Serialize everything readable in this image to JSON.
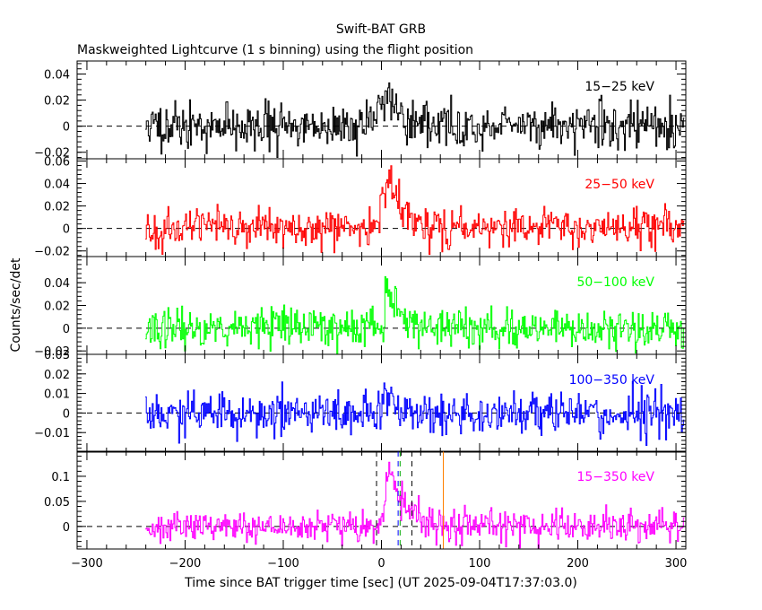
{
  "chart_data": {
    "type": "line",
    "title": "Swift-BAT GRB",
    "subtitle": "Maskweighted Lightcurve (1 s binning) using the flight position",
    "xlabel": "Time since BAT trigger time [sec] (UT 2025-09-04T17:37:03.0)",
    "ylabel": "Counts/sec/det",
    "xlim": [
      -310,
      310
    ],
    "xticks": [
      -300,
      -200,
      -100,
      0,
      100,
      200,
      300
    ],
    "xtick_labels": [
      "−300",
      "−200",
      "−100",
      "0",
      "100",
      "200",
      "300"
    ],
    "data_range": [
      -240,
      308
    ],
    "panels": [
      {
        "name": "15-25",
        "band": "15−25 keV",
        "color": "#000000",
        "ylim": [
          -0.025,
          0.05
        ],
        "yticks": [
          -0.02,
          0,
          0.02,
          0.04
        ],
        "ytick_labels": [
          "−0.02",
          "0",
          "0.02",
          "0.04"
        ],
        "noise": 0.0085,
        "peak": 0.025,
        "peak_center": 8,
        "rise": 8,
        "decay": 12,
        "seed": 11
      },
      {
        "name": "25-50",
        "band": "25−50 keV",
        "color": "#ff0000",
        "ylim": [
          -0.025,
          0.062
        ],
        "yticks": [
          -0.02,
          0,
          0.02,
          0.04,
          0.06
        ],
        "ytick_labels": [
          "−0.02",
          "0",
          "0.02",
          "0.04",
          "0.06"
        ],
        "noise": 0.0085,
        "peak": 0.045,
        "peak_center": 8,
        "rise": 6,
        "decay": 13,
        "seed": 23
      },
      {
        "name": "50-100",
        "band": "50−100 keV",
        "color": "#00ff00",
        "ylim": [
          -0.023,
          0.063
        ],
        "yticks": [
          -0.02,
          0,
          0.02,
          0.04
        ],
        "ytick_labels": [
          "−0.02",
          "0",
          "0.02",
          "0.04"
        ],
        "noise": 0.0085,
        "peak": 0.042,
        "peak_center": 6,
        "rise": 2,
        "decay": 13,
        "seed": 37
      },
      {
        "name": "100-350",
        "band": "100−350 keV",
        "color": "#0000ff",
        "ylim": [
          -0.02,
          0.03
        ],
        "yticks": [
          -0.01,
          0,
          0.01,
          0.02,
          0.03
        ],
        "ytick_labels": [
          "−0.01",
          "0",
          "0.01",
          "0.02",
          "0.03"
        ],
        "noise": 0.0058,
        "peak": 0.016,
        "peak_center": 4,
        "rise": 2,
        "decay": 10,
        "seed": 53
      },
      {
        "name": "15-350",
        "band": "15−350 keV",
        "color": "#ff00ff",
        "ylim": [
          -0.045,
          0.15
        ],
        "yticks": [
          0,
          0.05,
          0.1
        ],
        "ytick_labels": [
          "0",
          "0.05",
          "0.1"
        ],
        "noise": 0.016,
        "peak": 0.12,
        "peak_center": 9,
        "rise": 4,
        "decay": 14,
        "seed": 71
      }
    ],
    "markers": [
      {
        "x": -5,
        "color": "#000000",
        "style": "dashed"
      },
      {
        "x": 31,
        "color": "#000000",
        "style": "dashed"
      },
      {
        "x": 17,
        "color": "#0000ff",
        "style": "dashed"
      },
      {
        "x": 19,
        "color": "#00aa00",
        "style": "dashed"
      },
      {
        "x": 63,
        "color": "#ff8000",
        "style": "solid"
      }
    ]
  }
}
